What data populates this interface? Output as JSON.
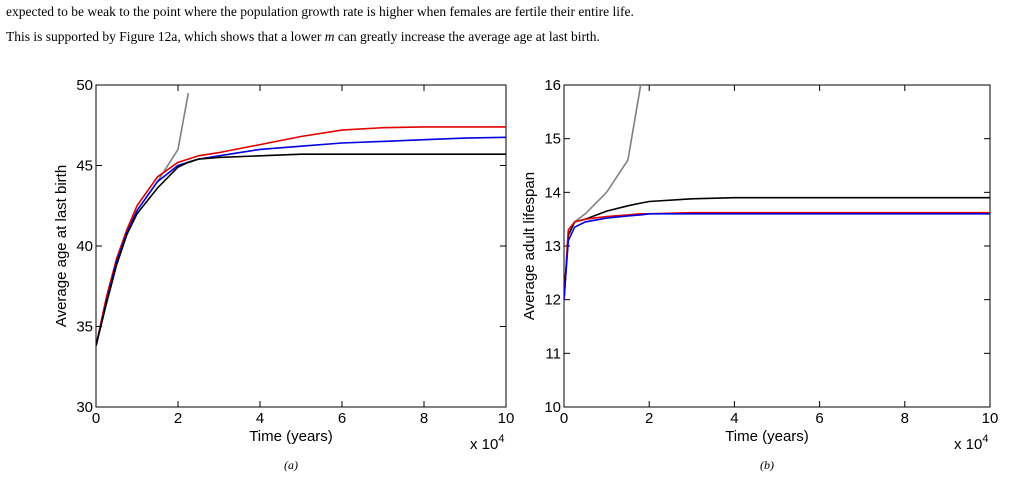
{
  "text": {
    "lines": [
      [
        "expected to be weak to the point where the population growth rate is higher when females are fertile their entire life."
      ],
      [
        "This is supported by Figure 12a, which shows that a lower ",
        "m",
        " can greatly increase the average age at last birth."
      ]
    ]
  },
  "chart_data": [
    {
      "type": "line",
      "caption": "(a)",
      "x_label": "Time (years)",
      "y_label": "Average age at last birth",
      "x_multiplier": "x 10",
      "x_multiplier_exponent": "4",
      "xlim": [
        0,
        10
      ],
      "ylim": [
        30,
        50
      ],
      "xticks": [
        0,
        2,
        4,
        6,
        8,
        10
      ],
      "yticks": [
        30,
        35,
        40,
        45,
        50
      ],
      "x": [
        0,
        0.25,
        0.5,
        0.75,
        1,
        1.5,
        2,
        2.25,
        2.5,
        3,
        4,
        5,
        6,
        7,
        8,
        9,
        10
      ],
      "series": [
        {
          "color": "#808080",
          "values": [
            33.8,
            36.5,
            38.9,
            40.8,
            42.2,
            44,
            46,
            49.5,
            null,
            null,
            null,
            null,
            null,
            null,
            null,
            null,
            null
          ]
        },
        {
          "color": "#e00000",
          "values": [
            33.8,
            36.8,
            39.2,
            41,
            42.5,
            44.3,
            45.2,
            45.4,
            45.6,
            45.8,
            46.3,
            46.8,
            47.2,
            47.35,
            47.4,
            47.4,
            47.4
          ]
        },
        {
          "color": "#0000e0",
          "values": [
            33.8,
            36.5,
            39,
            40.8,
            42.2,
            44,
            45,
            45.2,
            45.4,
            45.6,
            46,
            46.2,
            46.4,
            46.5,
            46.6,
            46.7,
            46.75
          ]
        },
        {
          "color": "#000000",
          "values": [
            33.8,
            36.4,
            38.8,
            40.7,
            42,
            43.6,
            44.9,
            45.2,
            45.4,
            45.5,
            45.6,
            45.7,
            45.7,
            45.7,
            45.7,
            45.7,
            45.7
          ]
        }
      ]
    },
    {
      "type": "line",
      "caption": "(b)",
      "x_label": "Time (years)",
      "y_label": "Average adult lifespan",
      "x_multiplier": "x 10",
      "x_multiplier_exponent": "4",
      "xlim": [
        0,
        10
      ],
      "ylim": [
        10,
        16
      ],
      "xticks": [
        0,
        2,
        4,
        6,
        8,
        10
      ],
      "yticks": [
        10,
        11,
        12,
        13,
        14,
        15,
        16
      ],
      "x": [
        0,
        0.1,
        0.25,
        0.5,
        1,
        1.5,
        1.8,
        2,
        3,
        4,
        6,
        8,
        10
      ],
      "series": [
        {
          "color": "#808080",
          "values": [
            12,
            13.2,
            13.45,
            13.6,
            14,
            14.6,
            16,
            null,
            null,
            null,
            null,
            null,
            null
          ]
        },
        {
          "color": "#000000",
          "values": [
            12,
            13.2,
            13.45,
            13.5,
            13.65,
            13.75,
            13.8,
            13.83,
            13.88,
            13.9,
            13.9,
            13.9,
            13.9
          ]
        },
        {
          "color": "#e00000",
          "values": [
            12,
            13.3,
            13.45,
            13.5,
            13.55,
            13.58,
            13.6,
            13.6,
            13.62,
            13.62,
            13.62,
            13.62,
            13.62
          ]
        },
        {
          "color": "#0000e0",
          "values": [
            12,
            13.1,
            13.35,
            13.45,
            13.52,
            13.56,
            13.58,
            13.6,
            13.6,
            13.6,
            13.6,
            13.6,
            13.6
          ]
        }
      ]
    }
  ]
}
